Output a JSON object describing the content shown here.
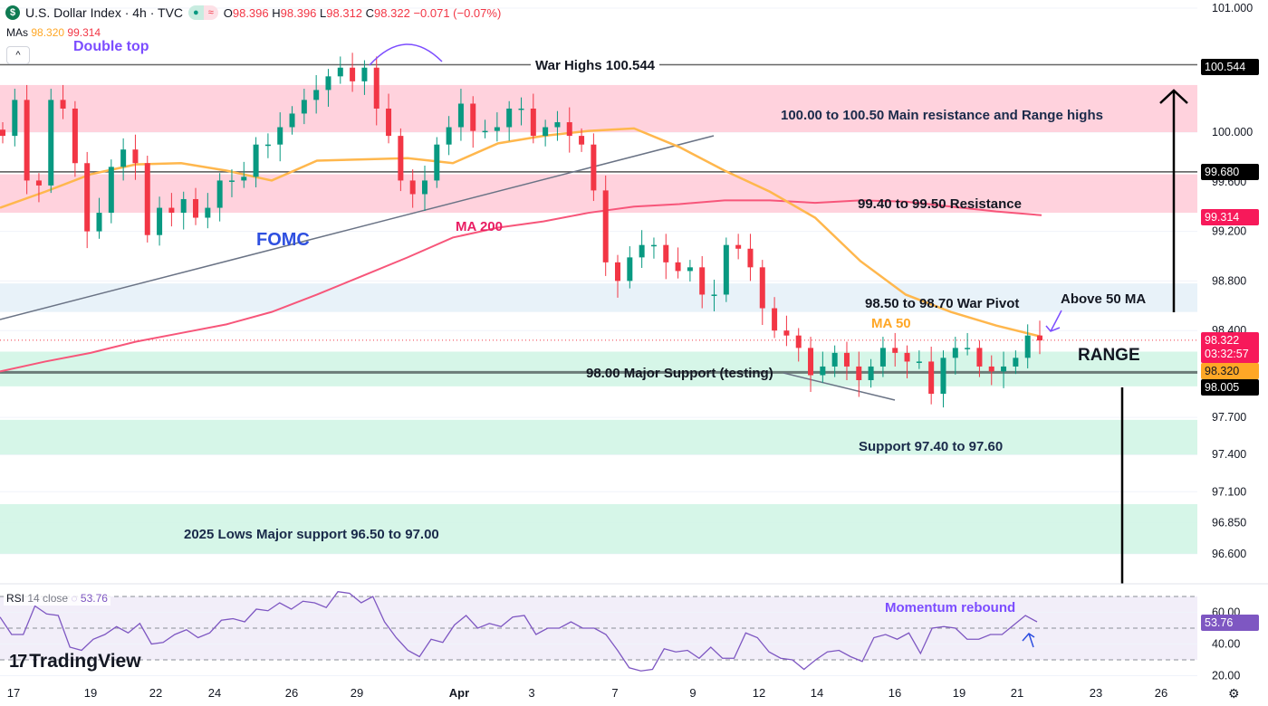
{
  "header": {
    "symbol_icon": "dollar-icon",
    "symbol_icon_glyph": "$",
    "title": "U.S. Dollar Index · 4h · TVC",
    "status_dot": "●",
    "status_wave": "≈",
    "o_label": "O",
    "o_value": "98.396",
    "h_label": "H",
    "h_value": "98.396",
    "l_label": "L",
    "l_value": "98.312",
    "c_label": "C",
    "c_value": "98.322",
    "change": "−0.071 (−0.07%)"
  },
  "mas": {
    "label": "MAs",
    "ma50": "98.320",
    "ma200": "99.314"
  },
  "collapse_glyph": "^",
  "annotations": {
    "double_top": "Double top",
    "fomc": "FOMC",
    "ma200": "MA 200",
    "war_highs": "War Highs 100.544",
    "main_resistance": "100.00 to 100.50 Main resistance and Range highs",
    "resistance": "99.40 to 99.50 Resistance",
    "war_pivot": "98.50 to 98.70 War Pivot",
    "ma50": "MA 50",
    "above_50": "Above 50 MA",
    "range": "RANGE",
    "major_support": "98.00 Major Support (testing)",
    "support": "Support 97.40 to 97.60",
    "lows_2025": "2025 Lows Major support 96.50 to 97.00",
    "momentum": "Momentum rebound"
  },
  "badges": {
    "war_high": "100.544",
    "level_99680": "99.680",
    "ma200": "99.314",
    "last_price": "98.322",
    "countdown": "03:32:57",
    "ma50": "98.320",
    "support_level": "98.005",
    "rsi": "53.76"
  },
  "rsi_legend": {
    "label": "RSI",
    "params": "14 close",
    "value": "53.76"
  },
  "branding": {
    "logo_glyph": "17",
    "name": "TradingView"
  },
  "colors": {
    "up": "#089981",
    "down": "#f23645",
    "ma50": "#ffb74d",
    "ma200": "#f7567a",
    "rsi": "#7e57c2",
    "resistance_zone": "#ffcdd9",
    "pivot_zone": "#e6f1f8",
    "support_zone": "#d2f5e6"
  },
  "chart_data": {
    "type": "candlestick",
    "title": "U.S. Dollar Index · 4h · TVC",
    "x_tick_labels": [
      "17",
      "19",
      "22",
      "24",
      "26",
      "29",
      "Apr",
      "3",
      "7",
      "9",
      "12",
      "14",
      "16",
      "19",
      "21",
      "23",
      "26"
    ],
    "y_tick_labels": [
      "101.000",
      "100.000",
      "99.600",
      "99.200",
      "98.800",
      "98.400",
      "97.700",
      "97.400",
      "97.100",
      "96.850",
      "96.600"
    ],
    "ylim": [
      96.45,
      101.05
    ],
    "closes": [
      99.97,
      100.26,
      99.61,
      99.57,
      100.26,
      100.19,
      99.75,
      99.2,
      99.35,
      99.72,
      99.86,
      99.75,
      99.17,
      99.39,
      99.35,
      99.46,
      99.31,
      99.39,
      99.61,
      99.61,
      99.64,
      99.9,
      99.9,
      100.04,
      100.15,
      100.26,
      100.34,
      100.45,
      100.52,
      100.41,
      100.52,
      100.19,
      99.97,
      99.61,
      99.5,
      99.61,
      99.9,
      100.04,
      100.23,
      100.01,
      100.01,
      100.04,
      100.19,
      100.19,
      99.97,
      100.04,
      100.08,
      99.97,
      99.9,
      99.53,
      98.95,
      98.8,
      98.99,
      99.09,
      99.09,
      98.95,
      98.88,
      98.91,
      98.69,
      98.69,
      99.09,
      99.06,
      98.91,
      98.58,
      98.4,
      98.36,
      98.26,
      98.04,
      98.11,
      98.22,
      98.11,
      98.0,
      98.11,
      98.26,
      98.22,
      98.15,
      98.15,
      97.89,
      98.18,
      98.26,
      98.26,
      98.11,
      98.07,
      98.11,
      98.18,
      98.36,
      98.32
    ],
    "ma50": [
      99.39,
      99.52,
      99.66,
      99.74,
      99.75,
      99.69,
      99.61,
      99.77,
      99.78,
      99.79,
      99.75,
      99.91,
      99.97,
      100.01,
      100.03,
      99.88,
      99.69,
      99.52,
      99.31,
      98.96,
      98.69,
      98.55,
      98.44,
      98.35
    ],
    "ma200": [
      98.07,
      98.15,
      98.22,
      98.31,
      98.38,
      98.45,
      98.55,
      98.69,
      98.84,
      98.99,
      99.15,
      99.23,
      99.28,
      99.35,
      99.4,
      99.42,
      99.45,
      99.45,
      99.43,
      99.45,
      99.44,
      99.4,
      99.36,
      99.33
    ],
    "zones": [
      {
        "name": "main-resistance",
        "from": 100.0,
        "to": 100.38
      },
      {
        "name": "resistance",
        "from": 99.35,
        "to": 99.66
      },
      {
        "name": "war-pivot",
        "from": 98.55,
        "to": 98.78
      },
      {
        "name": "range-support",
        "from": 97.95,
        "to": 98.23
      },
      {
        "name": "support",
        "from": 97.4,
        "to": 97.68
      },
      {
        "name": "lows-2025",
        "from": 96.6,
        "to": 97.0
      }
    ],
    "levels": [
      100.544,
      99.68,
      98.005
    ],
    "last_price": 98.322,
    "rsi": {
      "period": 14,
      "ylim": [
        10,
        80
      ],
      "bands": [
        30,
        50,
        70
      ],
      "y_tick_labels": [
        "60.00",
        "40.00",
        "20.00"
      ],
      "values": [
        57,
        46,
        46,
        64,
        59,
        58,
        38,
        36,
        43,
        46,
        51,
        47,
        53,
        40,
        41,
        46,
        49,
        44,
        47,
        55,
        56,
        54,
        62,
        61,
        66,
        62,
        67,
        66,
        63,
        73,
        72,
        66,
        70,
        54,
        44,
        36,
        32,
        43,
        41,
        52,
        58,
        50,
        53,
        51,
        57,
        58,
        46,
        50,
        50,
        54,
        50,
        50,
        46,
        36,
        25,
        23,
        24,
        37,
        35,
        36,
        31,
        38,
        31,
        31,
        47,
        44,
        35,
        31,
        30,
        24,
        30,
        35,
        36,
        32,
        29,
        44,
        46,
        43,
        47,
        34,
        50,
        51,
        50,
        43,
        43,
        46,
        46,
        52,
        58,
        54
      ],
      "last": 53.76
    }
  }
}
